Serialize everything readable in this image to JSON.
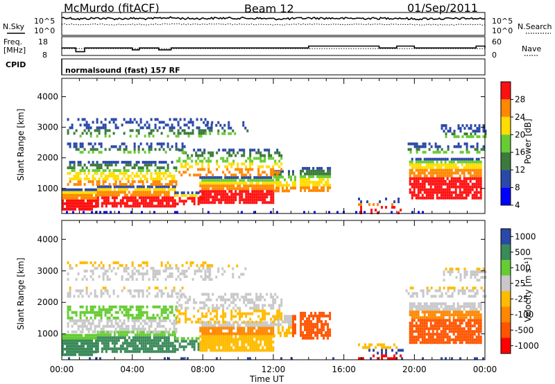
{
  "header": {
    "station": "McMurdo (fitACF)",
    "beam": "Beam 12",
    "date": "01/Sep/2011"
  },
  "chart_data": [
    {
      "type": "line",
      "panel": "noise",
      "left_label": "N.Sky",
      "right_label": "N.Search",
      "left_ticks": [
        "10^5",
        "10^0"
      ],
      "right_ticks": [
        "10^5",
        "10^0"
      ],
      "scale": "log",
      "ylim": [
        1,
        100000
      ],
      "series": [
        {
          "name": "N.Sky",
          "style": "solid",
          "x": [
            0,
            1,
            2,
            3,
            4,
            5,
            6,
            7,
            8,
            9,
            10,
            11,
            12,
            13,
            14,
            15,
            16,
            17,
            18,
            19,
            20,
            21,
            22,
            23,
            24
          ],
          "values": [
            20000,
            8000,
            15000,
            10000,
            12000,
            9000,
            20000,
            11000,
            12000,
            15000,
            14000,
            13000,
            9000,
            10000,
            15000,
            14000,
            12000,
            13000,
            12000,
            15000,
            8000,
            11000,
            10000,
            12000,
            9000
          ]
        },
        {
          "name": "N.Search",
          "style": "dotted",
          "x": [
            0,
            1,
            2,
            3,
            4,
            5,
            6,
            7,
            8,
            9,
            10,
            11,
            12,
            13,
            14,
            15,
            16,
            17,
            18,
            19,
            20,
            21,
            22,
            23,
            24
          ],
          "values": [
            300,
            200,
            250,
            200,
            220,
            200,
            300,
            220,
            250,
            260,
            240,
            230,
            200,
            220,
            250,
            240,
            220,
            230,
            220,
            250,
            180,
            200,
            190,
            210,
            180
          ]
        }
      ]
    },
    {
      "type": "line",
      "panel": "frequency",
      "left_label": "Freq.",
      "left_unit": "[MHz]",
      "right_label": "Nave",
      "left_ticks": [
        "18",
        "8"
      ],
      "right_ticks": [
        "60",
        "0"
      ],
      "series": [
        {
          "name": "Freq.",
          "style": "solid",
          "x": [
            0,
            0.5,
            0.8,
            1.0,
            1.3,
            1.6,
            3.5,
            4.0,
            4.4,
            5.0,
            5.5,
            6.2,
            8.0,
            10.0,
            12.0,
            14.0,
            16.0,
            18.0,
            19.0,
            20.0,
            22.0,
            23.5,
            24
          ],
          "values": [
            12,
            12,
            10,
            10,
            12,
            12,
            12,
            11,
            12,
            12,
            11,
            12,
            12,
            12,
            12,
            13,
            13,
            12,
            13,
            12,
            12,
            13,
            12
          ]
        },
        {
          "name": "Nave",
          "style": "dotted",
          "x": [
            0,
            24
          ],
          "values": [
            22,
            22
          ]
        }
      ]
    },
    {
      "type": "text",
      "panel": "cpid",
      "label": "CPID",
      "value": "normalsound (fast) 157 RF"
    },
    {
      "type": "heatmap",
      "panel": "power",
      "ylabel": "Slant Range [km]",
      "xlabel": "Time UT",
      "y_ticks": [
        1000,
        2000,
        3000,
        4000
      ],
      "ylim": [
        180,
        4600
      ],
      "xlim_hours": [
        0,
        24
      ],
      "x_ticks": [
        "00:00",
        "04:00",
        "08:00",
        "12:00",
        "16:00",
        "20:00",
        "00:00"
      ],
      "colorbar_label": "Power [dB]",
      "colorbar_ticks": [
        "4",
        "8",
        "12",
        "16",
        "20",
        "24",
        "28"
      ],
      "colors": [
        "#0000ff",
        "#2a48a8",
        "#3c7a3c",
        "#66cc33",
        "#ffdd00",
        "#ff8800",
        "#ff1010"
      ]
    },
    {
      "type": "heatmap",
      "panel": "velocity",
      "ylabel": "Slant Range [km]",
      "xlabel": "Time UT",
      "y_ticks": [
        1000,
        2000,
        3000,
        4000
      ],
      "ylim": [
        180,
        4600
      ],
      "xlim_hours": [
        0,
        24
      ],
      "x_ticks": [
        "00:00",
        "04:00",
        "08:00",
        "12:00",
        "16:00",
        "20:00",
        "00:00"
      ],
      "colorbar_label": "Velocity [m s⁻¹]",
      "colorbar_ticks": [
        "1000",
        "500",
        "100",
        "25",
        "-25",
        "-100",
        "-500",
        "-1000"
      ],
      "colors": [
        "#2a48a8",
        "#3a8a5a",
        "#66cc33",
        "#c8c8c8",
        "#ffbb00",
        "#ff8800",
        "#ff5500",
        "#ff0000"
      ]
    }
  ]
}
